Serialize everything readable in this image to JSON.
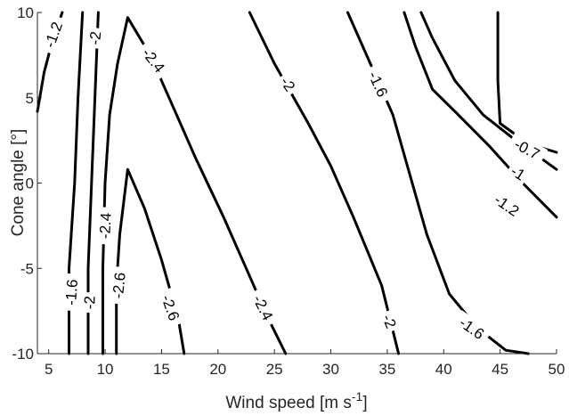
{
  "chart_data": {
    "type": "contour",
    "title": "",
    "xlabel": "Wind speed [m  s",
    "xlabel_superscript": "-1",
    "xlabel_suffix": "]",
    "ylabel": "Cone angle [°]",
    "xlim": [
      4,
      50
    ],
    "ylim": [
      -10,
      10
    ],
    "xticks": [
      5,
      10,
      15,
      20,
      25,
      30,
      35,
      40,
      45,
      50
    ],
    "yticks": [
      -10,
      -5,
      0,
      5,
      10
    ],
    "grid": false,
    "colors": {
      "line": "#000000",
      "axis": "#262626",
      "background": "#ffffff"
    },
    "contours": [
      {
        "level": "-1.2",
        "points": [
          [
            4.0,
            4.2
          ],
          [
            4.6,
            6.5
          ],
          [
            5.4,
            8.5
          ],
          [
            6.2,
            10
          ]
        ]
      },
      {
        "level": "-1.6",
        "points": [
          [
            6.8,
            -10
          ],
          [
            6.8,
            -5
          ],
          [
            7.3,
            0
          ],
          [
            7.6,
            5
          ],
          [
            8.0,
            10
          ]
        ]
      },
      {
        "level": "-2",
        "points": [
          [
            8.5,
            -10
          ],
          [
            8.5,
            -5
          ],
          [
            8.8,
            0
          ],
          [
            9.1,
            5
          ],
          [
            9.4,
            10
          ]
        ]
      },
      {
        "level": "-2.4",
        "points": [
          [
            9.8,
            -10
          ],
          [
            9.8,
            -5
          ],
          [
            10.0,
            0
          ],
          [
            10.4,
            4
          ],
          [
            11.1,
            7
          ],
          [
            12.0,
            9.7
          ],
          [
            14.0,
            7.5
          ],
          [
            16.0,
            4.5
          ],
          [
            18.0,
            1.5
          ],
          [
            20.5,
            -2
          ],
          [
            22.5,
            -5
          ],
          [
            24.5,
            -8
          ],
          [
            26.0,
            -10
          ]
        ]
      },
      {
        "level": "-2.6",
        "points": [
          [
            11.0,
            -10
          ],
          [
            11.0,
            -6
          ],
          [
            11.3,
            -3
          ],
          [
            12.0,
            0.8
          ],
          [
            13.5,
            -1.5
          ],
          [
            15.0,
            -4.5
          ],
          [
            16.5,
            -8
          ],
          [
            17.0,
            -10
          ]
        ]
      },
      {
        "level": "-2",
        "points": [
          [
            22.8,
            10
          ],
          [
            25.0,
            7
          ],
          [
            28.0,
            3.5
          ],
          [
            30.0,
            1
          ],
          [
            32.0,
            -2
          ],
          [
            34.5,
            -6
          ],
          [
            36.0,
            -10
          ]
        ]
      },
      {
        "level": "-1.6",
        "points": [
          [
            31.5,
            10
          ],
          [
            33.5,
            7
          ],
          [
            35.5,
            4
          ],
          [
            37.0,
            0.5
          ],
          [
            38.5,
            -3
          ],
          [
            40.5,
            -6.5
          ],
          [
            43.0,
            -8.5
          ],
          [
            45.5,
            -9.8
          ],
          [
            47.5,
            -10
          ]
        ]
      },
      {
        "level": "-1.2",
        "points": [
          [
            36.5,
            10
          ],
          [
            37.5,
            8
          ],
          [
            39.0,
            5.5
          ],
          [
            41.0,
            4.2
          ],
          [
            44.0,
            2.2
          ],
          [
            47.0,
            0
          ],
          [
            50.0,
            -2
          ]
        ]
      },
      {
        "level": "-1",
        "points": [
          [
            38.0,
            10
          ],
          [
            39.0,
            8.5
          ],
          [
            41.0,
            6
          ],
          [
            43.5,
            4
          ],
          [
            46.0,
            2.7
          ],
          [
            50.0,
            0.8
          ]
        ]
      },
      {
        "level": "-0.7",
        "points": [
          [
            44.8,
            10
          ],
          [
            44.8,
            6
          ],
          [
            45.0,
            3.5
          ],
          [
            47.5,
            2.3
          ],
          [
            50.0,
            1.8
          ]
        ]
      }
    ],
    "labels": [
      {
        "text": "-1.2",
        "x": 5.4,
        "y": 8.7,
        "angle": -70
      },
      {
        "text": "-2",
        "x": 9.1,
        "y": 8.5,
        "angle": -84
      },
      {
        "text": "-2.4",
        "x": 14.3,
        "y": 7.2,
        "angle": 52
      },
      {
        "text": "-2",
        "x": 26.2,
        "y": 5.8,
        "angle": 55
      },
      {
        "text": "-1.6",
        "x": 34.2,
        "y": 5.8,
        "angle": 65
      },
      {
        "text": "-0.7",
        "x": 47.4,
        "y": 2.0,
        "angle": 28
      },
      {
        "text": "-1",
        "x": 46.6,
        "y": 0.6,
        "angle": 32
      },
      {
        "text": "-1.2",
        "x": 45.6,
        "y": -1.3,
        "angle": 35
      },
      {
        "text": "-2.4",
        "x": 10.0,
        "y": -2.5,
        "angle": -87
      },
      {
        "text": "-2.6",
        "x": 11.2,
        "y": -6.0,
        "angle": -84
      },
      {
        "text": "-1.6",
        "x": 7.0,
        "y": -6.4,
        "angle": -86
      },
      {
        "text": "-2",
        "x": 8.6,
        "y": -7.0,
        "angle": -88
      },
      {
        "text": "-2.6",
        "x": 15.8,
        "y": -7.3,
        "angle": 70
      },
      {
        "text": "-2.4",
        "x": 24.0,
        "y": -7.3,
        "angle": 63
      },
      {
        "text": "-2",
        "x": 35.2,
        "y": -8.1,
        "angle": 67
      },
      {
        "text": "-1.6",
        "x": 42.5,
        "y": -8.5,
        "angle": 35
      }
    ]
  }
}
